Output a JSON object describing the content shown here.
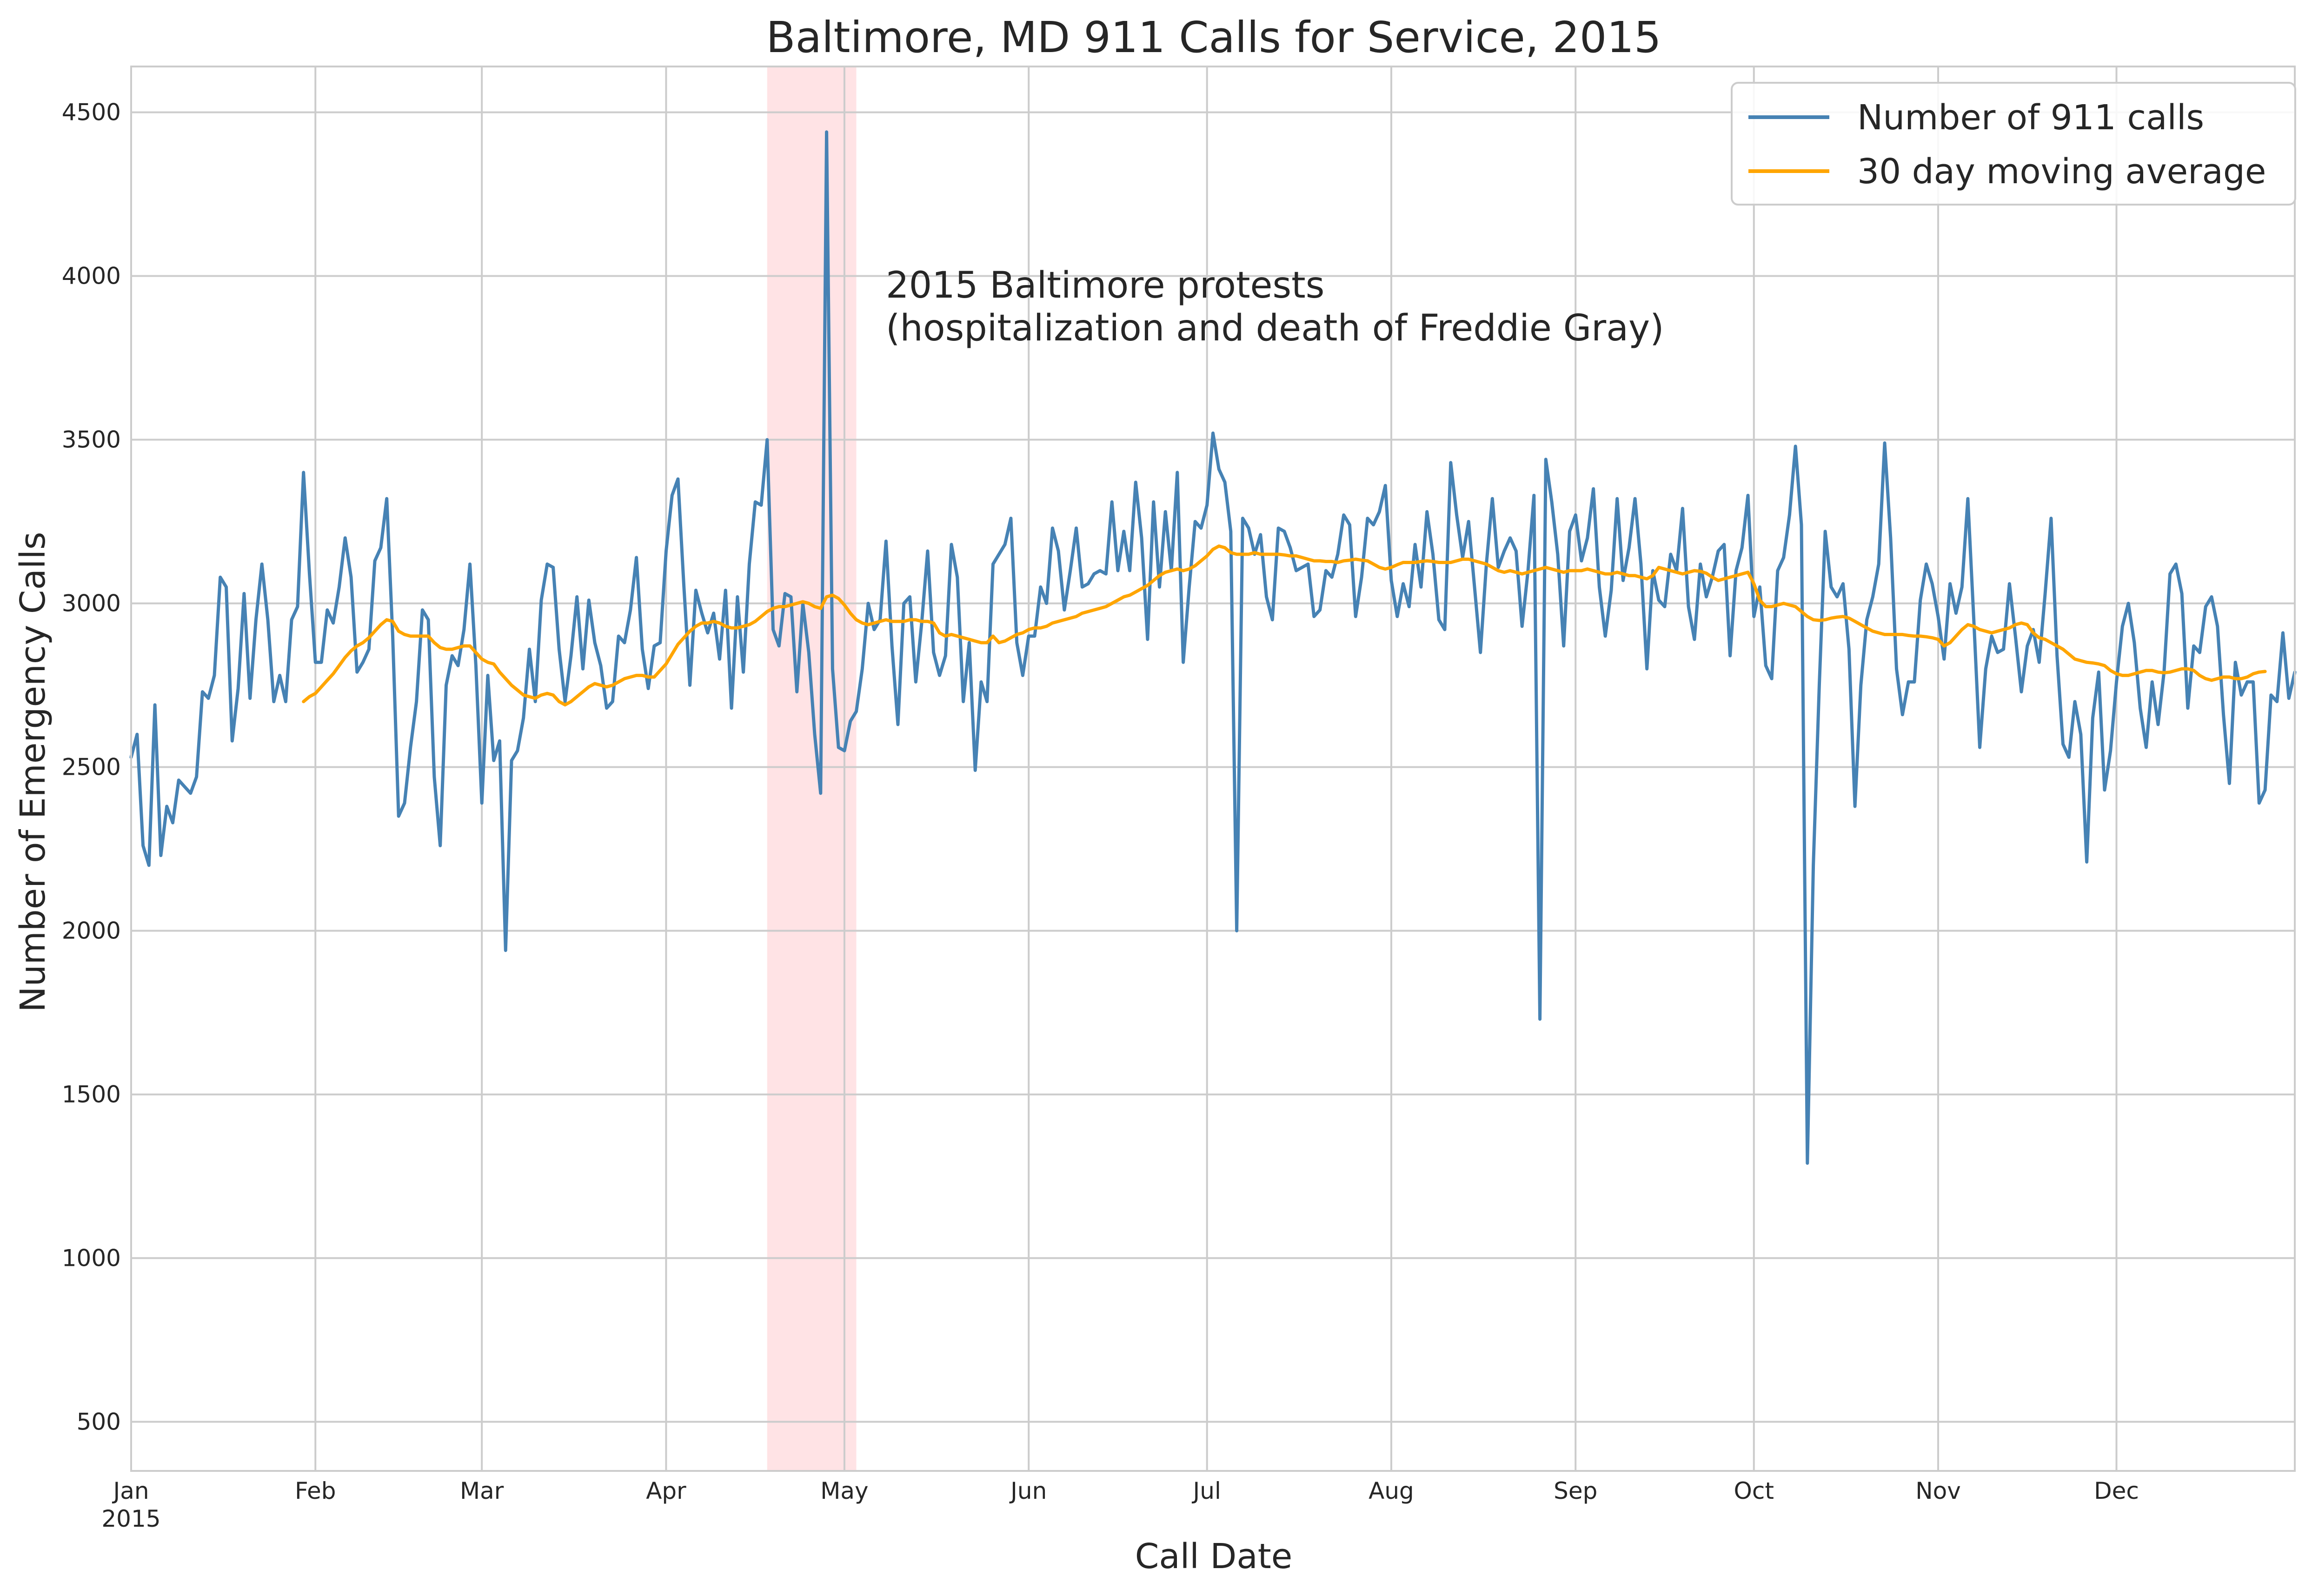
{
  "chart_data": {
    "type": "line",
    "title": "Baltimore, MD 911 Calls for Service, 2015",
    "xlabel": "Call Date",
    "ylabel": "Number of Emergency Calls",
    "x_start": "2015-01-01",
    "x_end": "2015-12-31",
    "xlim": [
      "2015-01-01",
      "2015-12-31"
    ],
    "ylim": [
      350,
      4640
    ],
    "grid": true,
    "legend_position": "top-right",
    "x_ticks": [
      {
        "date": "2015-01-01",
        "label": "Jan",
        "sublabel": "2015"
      },
      {
        "date": "2015-02-01",
        "label": "Feb"
      },
      {
        "date": "2015-03-01",
        "label": "Mar"
      },
      {
        "date": "2015-04-01",
        "label": "Apr"
      },
      {
        "date": "2015-05-01",
        "label": "May"
      },
      {
        "date": "2015-06-01",
        "label": "Jun"
      },
      {
        "date": "2015-07-01",
        "label": "Jul"
      },
      {
        "date": "2015-08-01",
        "label": "Aug"
      },
      {
        "date": "2015-09-01",
        "label": "Sep"
      },
      {
        "date": "2015-10-01",
        "label": "Oct"
      },
      {
        "date": "2015-11-01",
        "label": "Nov"
      },
      {
        "date": "2015-12-01",
        "label": "Dec"
      }
    ],
    "y_ticks": [
      500,
      1000,
      1500,
      2000,
      2500,
      3000,
      3500,
      4000,
      4500
    ],
    "highlight": {
      "start": "2015-04-18",
      "end": "2015-05-03",
      "color": "#ffc0c6",
      "label_line1": "2015 Baltimore protests",
      "label_line2": "(hospitalization and death of Freddie Gray)"
    },
    "series": [
      {
        "name": "Number of 911 calls",
        "color": "#4682b4",
        "values": [
          2530,
          2600,
          2260,
          2200,
          2690,
          2230,
          2380,
          2330,
          2460,
          2440,
          2420,
          2470,
          2730,
          2710,
          2780,
          3080,
          3050,
          2580,
          2740,
          3030,
          2710,
          2950,
          3120,
          2950,
          2700,
          2780,
          2700,
          2950,
          2990,
          3400,
          3090,
          2820,
          2820,
          2980,
          2940,
          3050,
          3200,
          3080,
          2790,
          2820,
          2860,
          3130,
          3170,
          3320,
          2900,
          2350,
          2390,
          2560,
          2700,
          2980,
          2950,
          2470,
          2260,
          2750,
          2840,
          2810,
          2920,
          3120,
          2810,
          2390,
          2780,
          2520,
          2580,
          1940,
          2520,
          2550,
          2650,
          2860,
          2700,
          3010,
          3120,
          3110,
          2860,
          2700,
          2840,
          3020,
          2800,
          3010,
          2880,
          2810,
          2680,
          2700,
          2900,
          2880,
          2980,
          3140,
          2860,
          2740,
          2870,
          2880,
          3160,
          3330,
          3380,
          3050,
          2750,
          3040,
          2970,
          2910,
          2970,
          2830,
          3040,
          2680,
          3020,
          2790,
          3120,
          3310,
          3300,
          3500,
          2920,
          2870,
          3030,
          3020,
          2730,
          3000,
          2850,
          2600,
          2420,
          4440,
          2800,
          2560,
          2550,
          2640,
          2670,
          2800,
          3000,
          2920,
          2950,
          3190,
          2870,
          2630,
          3000,
          3020,
          2760,
          2940,
          3160,
          2850,
          2780,
          2840,
          3180,
          3080,
          2700,
          2880,
          2490,
          2760,
          2700,
          3120,
          3150,
          3180,
          3260,
          2880,
          2780,
          2900,
          2900,
          3050,
          3000,
          3230,
          3160,
          2980,
          3100,
          3230,
          3050,
          3060,
          3090,
          3100,
          3090,
          3310,
          3100,
          3220,
          3100,
          3370,
          3200,
          2890,
          3310,
          3050,
          3280,
          3100,
          3400,
          2820,
          3050,
          3250,
          3230,
          3300,
          3520,
          3410,
          3370,
          3220,
          2000,
          3260,
          3230,
          3150,
          3210,
          3020,
          2950,
          3230,
          3220,
          3170,
          3100,
          3110,
          3120,
          2960,
          2980,
          3100,
          3080,
          3150,
          3270,
          3240,
          2960,
          3080,
          3260,
          3240,
          3280,
          3360,
          3070,
          2960,
          3060,
          2990,
          3180,
          3050,
          3280,
          3150,
          2950,
          2920,
          3430,
          3270,
          3140,
          3250,
          3050,
          2850,
          3120,
          3320,
          3110,
          3160,
          3200,
          3160,
          2930,
          3100,
          3330,
          1730,
          3440,
          3310,
          3150,
          2870,
          3220,
          3270,
          3130,
          3200,
          3350,
          3050,
          2900,
          3040,
          3320,
          3070,
          3170,
          3320,
          3120,
          2800,
          3100,
          3010,
          2990,
          3150,
          3100,
          3290,
          2990,
          2890,
          3120,
          3020,
          3080,
          3160,
          3180,
          2840,
          3100,
          3170,
          3330,
          2960,
          3050,
          2810,
          2770,
          3100,
          3140,
          3270,
          3480,
          3240,
          1290,
          2200,
          2750,
          3220,
          3050,
          3020,
          3060,
          2860,
          2380,
          2750,
          2950,
          3020,
          3120,
          3490,
          3200,
          2800,
          2660,
          2760,
          2760,
          3010,
          3120,
          3060,
          2960,
          2830,
          3060,
          2970,
          3050,
          3320,
          2950,
          2560,
          2800,
          2900,
          2850,
          2860,
          3060,
          2900,
          2730,
          2870,
          2920,
          2820,
          3030,
          3260,
          2840,
          2570,
          2530,
          2700,
          2600,
          2210,
          2650,
          2790,
          2430,
          2550,
          2760,
          2930,
          3000,
          2880,
          2680,
          2560,
          2760,
          2630,
          2790,
          3090,
          3120,
          3030,
          2680,
          2870,
          2850,
          2990,
          3020,
          2930,
          2660,
          2450,
          2820,
          2720,
          2760,
          2760,
          2390,
          2430,
          2720,
          2700,
          2910,
          2710,
          2790
        ]
      },
      {
        "name": "30 day moving average",
        "color": "#ffa500",
        "start_index": 29,
        "values": [
          2700,
          2715,
          2725,
          2745,
          2765,
          2785,
          2810,
          2835,
          2855,
          2870,
          2880,
          2895,
          2915,
          2935,
          2950,
          2945,
          2915,
          2905,
          2900,
          2900,
          2900,
          2900,
          2880,
          2865,
          2860,
          2860,
          2865,
          2870,
          2870,
          2850,
          2830,
          2820,
          2815,
          2790,
          2770,
          2750,
          2735,
          2720,
          2715,
          2710,
          2720,
          2725,
          2720,
          2700,
          2690,
          2700,
          2715,
          2730,
          2745,
          2755,
          2750,
          2745,
          2750,
          2760,
          2770,
          2775,
          2780,
          2780,
          2775,
          2775,
          2795,
          2815,
          2845,
          2875,
          2895,
          2915,
          2930,
          2940,
          2940,
          2945,
          2940,
          2930,
          2925,
          2925,
          2930,
          2935,
          2945,
          2960,
          2975,
          2985,
          2990,
          2990,
          2995,
          3000,
          3005,
          3000,
          2990,
          2985,
          3020,
          3025,
          3015,
          2995,
          2970,
          2950,
          2940,
          2935,
          2940,
          2945,
          2950,
          2945,
          2945,
          2945,
          2950,
          2950,
          2945,
          2945,
          2940,
          2910,
          2900,
          2905,
          2900,
          2895,
          2890,
          2885,
          2880,
          2880,
          2900,
          2880,
          2885,
          2895,
          2905,
          2910,
          2920,
          2925,
          2925,
          2930,
          2940,
          2945,
          2950,
          2955,
          2960,
          2970,
          2975,
          2980,
          2985,
          2990,
          3000,
          3010,
          3020,
          3025,
          3035,
          3045,
          3055,
          3070,
          3085,
          3095,
          3100,
          3105,
          3100,
          3105,
          3115,
          3130,
          3145,
          3165,
          3175,
          3170,
          3155,
          3150,
          3150,
          3150,
          3155,
          3150,
          3150,
          3150,
          3150,
          3148,
          3145,
          3145,
          3140,
          3135,
          3130,
          3130,
          3128,
          3128,
          3125,
          3130,
          3132,
          3135,
          3132,
          3130,
          3120,
          3110,
          3105,
          3110,
          3118,
          3125,
          3125,
          3125,
          3128,
          3130,
          3128,
          3125,
          3125,
          3125,
          3130,
          3135,
          3135,
          3130,
          3125,
          3120,
          3110,
          3100,
          3095,
          3100,
          3095,
          3090,
          3095,
          3100,
          3105,
          3110,
          3105,
          3100,
          3095,
          3100,
          3100,
          3100,
          3105,
          3100,
          3095,
          3090,
          3090,
          3095,
          3090,
          3085,
          3085,
          3080,
          3075,
          3085,
          3110,
          3105,
          3100,
          3095,
          3090,
          3095,
          3100,
          3098,
          3092,
          3080,
          3070,
          3075,
          3080,
          3085,
          3090,
          3095,
          3060,
          3010,
          2990,
          2990,
          2995,
          3000,
          2995,
          2990,
          2975,
          2960,
          2950,
          2948,
          2950,
          2955,
          2958,
          2960,
          2955,
          2945,
          2935,
          2925,
          2915,
          2910,
          2905,
          2905,
          2905,
          2905,
          2902,
          2900,
          2900,
          2898,
          2895,
          2890,
          2870,
          2880,
          2900,
          2920,
          2935,
          2930,
          2920,
          2915,
          2910,
          2915,
          2920,
          2925,
          2935,
          2940,
          2935,
          2910,
          2895,
          2890,
          2880,
          2870,
          2860,
          2845,
          2830,
          2825,
          2820,
          2818,
          2815,
          2810,
          2795,
          2785,
          2780,
          2780,
          2785,
          2790,
          2795,
          2795,
          2790,
          2788,
          2790,
          2795,
          2800,
          2800,
          2795,
          2780,
          2770,
          2765,
          2770,
          2775,
          2775,
          2770,
          2770,
          2775,
          2785,
          2790,
          2792
        ]
      }
    ]
  }
}
